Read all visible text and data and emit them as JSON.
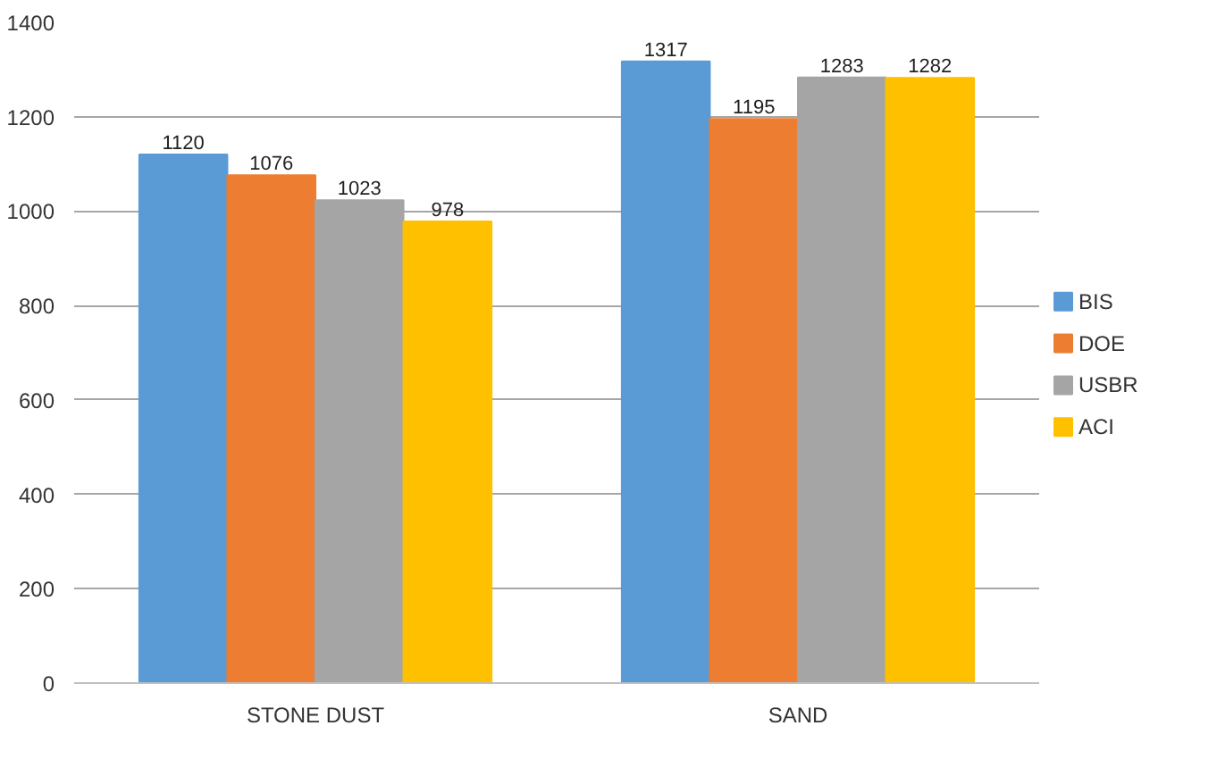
{
  "chart_data": {
    "type": "bar",
    "categories": [
      "STONE DUST",
      "SAND"
    ],
    "series": [
      {
        "name": "BIS",
        "color": "#5b9bd5",
        "values": [
          1120,
          1317
        ]
      },
      {
        "name": "DOE",
        "color": "#ed7d31",
        "values": [
          1076,
          1195
        ]
      },
      {
        "name": "USBR",
        "color": "#a5a5a5",
        "values": [
          1023,
          1283
        ]
      },
      {
        "name": "ACI",
        "color": "#ffc000",
        "values": [
          978,
          1282
        ]
      }
    ],
    "ylim": [
      0,
      1400
    ],
    "yticks": [
      0,
      200,
      400,
      600,
      800,
      1000,
      1200,
      1400
    ],
    "grid": "y",
    "legend": "right",
    "data_labels": true
  }
}
